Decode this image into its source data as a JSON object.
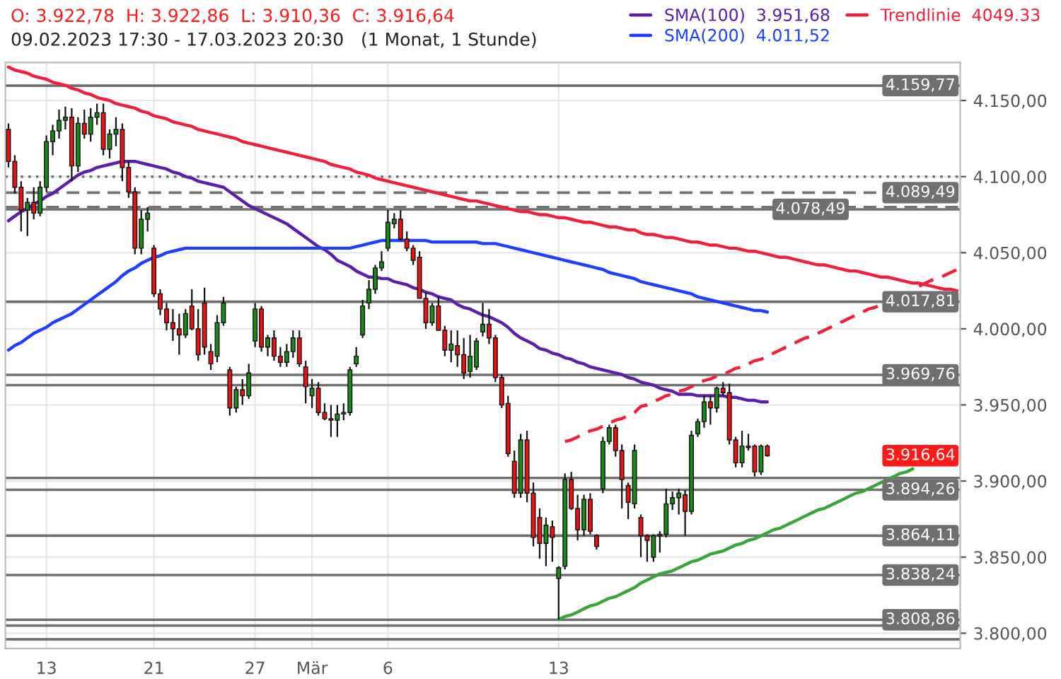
{
  "chart_data": {
    "type": "candlestick",
    "title": "O: 3.922,78  H: 3.922,86  L: 3.910,36  C: 3.916,64",
    "subtitle": "09.02.2023 17:30 - 17.03.2023 20:30   (1 Monat, 1 Stunde)",
    "categories": [
      null,
      null,
      null,
      null,
      null,
      null,
      "13",
      null,
      null,
      null,
      null,
      null,
      null,
      null,
      null,
      null,
      null,
      null,
      null,
      null,
      null,
      null,
      null,
      "21",
      null,
      null,
      null,
      null,
      null,
      null,
      null,
      null,
      null,
      null,
      null,
      null,
      null,
      null,
      null,
      "27",
      null,
      null,
      null,
      null,
      null,
      null,
      null,
      null,
      "Mär",
      null,
      null,
      null,
      null,
      null,
      null,
      null,
      null,
      null,
      null,
      null,
      "6",
      null,
      null,
      null,
      null,
      null,
      null,
      null,
      null,
      null,
      null,
      null,
      null,
      null,
      null,
      null,
      null,
      null,
      null,
      null,
      null,
      null,
      null,
      null,
      null,
      null,
      null,
      "13",
      null,
      null,
      null,
      null,
      null,
      null,
      null,
      null,
      null,
      null,
      null,
      null,
      null,
      null,
      null,
      null,
      null,
      null,
      null,
      null,
      null,
      null,
      null,
      null,
      null,
      null,
      null,
      null,
      null,
      null,
      null,
      null,
      null,
      null,
      null,
      null,
      null,
      null,
      null,
      null,
      null,
      null,
      null,
      null,
      null,
      null,
      null,
      null,
      null,
      null,
      null,
      null,
      null,
      null,
      null,
      null,
      null,
      null,
      null,
      null,
      null,
      null,
      null
    ],
    "ohlc": [
      [
        4131,
        4135,
        4106,
        4110
      ],
      [
        4110,
        4114,
        4089,
        4093
      ],
      [
        4093,
        4097,
        4064,
        4078
      ],
      [
        4078,
        4086,
        4061,
        4083
      ],
      [
        4083,
        4093,
        4072,
        4076
      ],
      [
        4076,
        4097,
        4074,
        4093
      ],
      [
        4093,
        4127,
        4090,
        4123
      ],
      [
        4123,
        4134,
        4114,
        4130
      ],
      [
        4130,
        4144,
        4125,
        4137
      ],
      [
        4137,
        4146,
        4131,
        4139
      ],
      [
        4139,
        4145,
        4097,
        4107
      ],
      [
        4107,
        4139,
        4103,
        4135
      ],
      [
        4135,
        4144,
        4125,
        4128
      ],
      [
        4128,
        4145,
        4123,
        4139
      ],
      [
        4139,
        4148,
        4134,
        4142
      ],
      [
        4142,
        4148,
        4114,
        4118
      ],
      [
        4118,
        4131,
        4112,
        4128
      ],
      [
        4128,
        4139,
        4120,
        4131
      ],
      [
        4131,
        4135,
        4097,
        4106
      ],
      [
        4106,
        4110,
        4086,
        4090
      ],
      [
        4090,
        4093,
        4049,
        4053
      ],
      [
        4053,
        4078,
        4049,
        4072
      ],
      [
        4072,
        4080,
        4064,
        4076
      ],
      [
        4053,
        4055,
        4021,
        4023
      ],
      [
        4023,
        4026,
        4009,
        4013
      ],
      [
        4013,
        4017,
        3999,
        4004
      ],
      [
        4004,
        4013,
        3992,
        4000
      ],
      [
        4000,
        4010,
        3983,
        3996
      ],
      [
        3996,
        4013,
        3994,
        4010
      ],
      [
        4015,
        4026,
        3999,
        4000
      ],
      [
        4000,
        4013,
        3979,
        3983
      ],
      [
        4017,
        4027,
        3983,
        3988
      ],
      [
        3985,
        3990,
        3973,
        3977
      ],
      [
        3982,
        4009,
        3978,
        4004
      ],
      [
        4004,
        4021,
        4002,
        4017
      ],
      [
        3973,
        3975,
        3943,
        3948
      ],
      [
        3948,
        3962,
        3945,
        3960
      ],
      [
        3960,
        3967,
        3950,
        3956
      ],
      [
        3956,
        3977,
        3954,
        3971
      ],
      [
        3992,
        4017,
        3988,
        4013
      ],
      [
        4013,
        4015,
        3985,
        3988
      ],
      [
        3988,
        3996,
        3982,
        3994
      ],
      [
        3994,
        3999,
        3979,
        3982
      ],
      [
        3982,
        3988,
        3975,
        3978
      ],
      [
        3978,
        3990,
        3975,
        3985
      ],
      [
        3985,
        3999,
        3981,
        3994
      ],
      [
        3994,
        3999,
        3975,
        3977
      ],
      [
        3975,
        3979,
        3951,
        3962
      ],
      [
        3956,
        3967,
        3948,
        3961
      ],
      [
        3961,
        3965,
        3943,
        3945
      ],
      [
        3945,
        3951,
        3940,
        3941
      ],
      [
        3941,
        3950,
        3929,
        3940
      ],
      [
        3940,
        3950,
        3929,
        3944
      ],
      [
        3944,
        3951,
        3940,
        3945
      ],
      [
        3945,
        3975,
        3943,
        3973
      ],
      [
        3977,
        3988,
        3975,
        3982
      ],
      [
        3996,
        4019,
        3994,
        4015
      ],
      [
        4017,
        4032,
        4013,
        4026
      ],
      [
        4026,
        4042,
        4023,
        4040
      ],
      [
        4040,
        4051,
        4038,
        4044
      ],
      [
        4053,
        4078,
        4051,
        4070
      ],
      [
        4069,
        4076,
        4066,
        4072
      ],
      [
        4072,
        4078,
        4058,
        4059
      ],
      [
        4059,
        4064,
        4051,
        4053
      ],
      [
        4053,
        4055,
        4042,
        4045
      ],
      [
        4047,
        4051,
        4020,
        4020
      ],
      [
        4020,
        4024,
        4000,
        4004
      ],
      [
        4004,
        4017,
        4002,
        4015
      ],
      [
        4015,
        4021,
        3999,
        3999
      ],
      [
        3999,
        4002,
        3982,
        3986
      ],
      [
        3986,
        3999,
        3978,
        3990
      ],
      [
        3989,
        3999,
        3975,
        3983
      ],
      [
        3983,
        3994,
        3967,
        3971
      ],
      [
        3972,
        3996,
        3968,
        3982
      ],
      [
        3975,
        3994,
        3973,
        3992
      ],
      [
        3998,
        4017,
        3995,
        4003
      ],
      [
        4003,
        4013,
        3990,
        3994
      ],
      [
        3994,
        3996,
        3965,
        3968
      ],
      [
        3968,
        3970,
        3948,
        3950
      ],
      [
        3951,
        3956,
        3916,
        3918
      ],
      [
        3913,
        3920,
        3889,
        3892
      ],
      [
        3892,
        3931,
        3889,
        3927
      ],
      [
        3927,
        3933,
        3886,
        3892
      ],
      [
        3892,
        3899,
        3857,
        3863
      ],
      [
        3876,
        3882,
        3849,
        3859
      ],
      [
        3859,
        3876,
        3844,
        3871
      ],
      [
        3870,
        3874,
        3847,
        3863
      ],
      [
        3836,
        3844,
        3809,
        3843
      ],
      [
        3844,
        3905,
        3842,
        3901
      ],
      [
        3901,
        3906,
        3881,
        3882
      ],
      [
        3882,
        3891,
        3861,
        3868
      ],
      [
        3868,
        3891,
        3864,
        3888
      ],
      [
        3888,
        3892,
        3865,
        3867
      ],
      [
        3864,
        3865,
        3855,
        3857
      ],
      [
        3895,
        3929,
        3892,
        3926
      ],
      [
        3926,
        3937,
        3924,
        3935
      ],
      [
        3935,
        3937,
        3916,
        3920
      ],
      [
        3920,
        3924,
        3882,
        3901
      ],
      [
        3897,
        3899,
        3875,
        3886
      ],
      [
        3885,
        3924,
        3882,
        3920
      ],
      [
        3876,
        3878,
        3850,
        3864
      ],
      [
        3864,
        3865,
        3847,
        3861
      ],
      [
        3850,
        3865,
        3847,
        3864
      ],
      [
        3864,
        3867,
        3853,
        3865
      ],
      [
        3865,
        3895,
        3863,
        3885
      ],
      [
        3885,
        3893,
        3881,
        3889
      ],
      [
        3889,
        3895,
        3878,
        3892
      ],
      [
        3891,
        3894,
        3864,
        3880
      ],
      [
        3880,
        3933,
        3878,
        3930
      ],
      [
        3931,
        3941,
        3929,
        3939
      ],
      [
        3939,
        3956,
        3935,
        3952
      ],
      [
        3952,
        3956,
        3937,
        3948
      ],
      [
        3948,
        3962,
        3945,
        3961
      ],
      [
        3961,
        3965,
        3956,
        3958
      ],
      [
        3958,
        3964,
        3924,
        3927
      ],
      [
        3927,
        3929,
        3909,
        3912
      ],
      [
        3912,
        3933,
        3909,
        3923
      ],
      [
        3923,
        3931,
        3920,
        3922
      ],
      [
        3923,
        3924,
        3903,
        3906
      ],
      [
        3906,
        3924,
        3904,
        3923
      ],
      [
        3923,
        3924,
        3916,
        3916.64
      ],
      null,
      null,
      null,
      null,
      null,
      null,
      null,
      null,
      null,
      null,
      null,
      null,
      null,
      null,
      null,
      null,
      null,
      null,
      null,
      null,
      null,
      null,
      null,
      null,
      null,
      null,
      null,
      null,
      null,
      null
    ],
    "series": [
      {
        "type": "line",
        "name": "SMA(100)  3.951,68",
        "color": "#5b1fa8",
        "values": [
          4071,
          4074,
          4077,
          4079,
          4082,
          4084,
          4087,
          4089,
          4092,
          4095,
          4098,
          4101,
          4103,
          4104,
          4106,
          4107,
          4108,
          4109,
          4110,
          4110,
          4110,
          4109,
          4108,
          4107,
          4106,
          4105,
          4103,
          4102,
          4100,
          4099,
          4097,
          4096,
          4095,
          4094,
          4093,
          4090,
          4087,
          4084,
          4081,
          4079,
          4077,
          4075,
          4073,
          4071,
          4069,
          4066,
          4063,
          4060,
          4057,
          4054,
          4052,
          4049,
          4045,
          4043,
          4041,
          4038,
          4036,
          4034,
          4034,
          4033,
          4033,
          4031,
          4030,
          4029,
          4027,
          4026,
          4024,
          4023,
          4021,
          4020,
          4019,
          4016,
          4014,
          4013,
          4011,
          4009,
          4008,
          4006,
          4004,
          4001,
          3997,
          3994,
          3992,
          3990,
          3987,
          3986,
          3984,
          3983,
          3981,
          3980,
          3978,
          3977,
          3975,
          3974,
          3973,
          3972,
          3971,
          3970,
          3968,
          3967,
          3965,
          3964,
          3963,
          3961,
          3960,
          3959,
          3957,
          3957,
          3957,
          3956,
          3956,
          3956,
          3956,
          3956,
          3955,
          3955,
          3954,
          3953,
          3953,
          3952,
          3952,
          null,
          null,
          null,
          null,
          null,
          null,
          null,
          null,
          null,
          null,
          null,
          null,
          null,
          null,
          null,
          null,
          null,
          null,
          null,
          null,
          null,
          null,
          null,
          null,
          null,
          null,
          null,
          null,
          null,
          null
        ]
      },
      {
        "type": "line",
        "name": "SMA(200)  4.011,52",
        "color": "#1f3fff",
        "values": [
          3986,
          3989,
          3991,
          3994,
          3997,
          3999,
          4001,
          4004,
          4006,
          4008,
          4010,
          4013,
          4016,
          4019,
          4022,
          4025,
          4028,
          4031,
          4035,
          4038,
          4040,
          4043,
          4045,
          4047,
          4048,
          4050,
          4051,
          4052,
          4053,
          4053,
          4053,
          4053,
          4053,
          4053,
          4053,
          4053,
          4053,
          4053,
          4053,
          4053,
          4053,
          4053,
          4053,
          4053,
          4053,
          4053,
          4053,
          4053,
          4053,
          4053,
          4053,
          4053,
          4053,
          4053,
          4053,
          4054,
          4055,
          4056,
          4057,
          4058,
          4058,
          4058,
          4058,
          4058,
          4058,
          4058,
          4058,
          4057,
          4057,
          4057,
          4057,
          4057,
          4057,
          4057,
          4057,
          4056,
          4056,
          4056,
          4055,
          4054,
          4053,
          4052,
          4051,
          4050,
          4049,
          4048,
          4047,
          4046,
          4045,
          4044,
          4043,
          4042,
          4041,
          4040,
          4039,
          4037,
          4036,
          4035,
          4034,
          4033,
          4031,
          4030,
          4029,
          4028,
          4027,
          4026,
          4025,
          4024,
          4023,
          4021,
          4020,
          4019,
          4018,
          4017,
          4016,
          4015,
          4014,
          4013,
          4012,
          4012,
          4011,
          null,
          null,
          null,
          null,
          null,
          null,
          null,
          null,
          null,
          null,
          null,
          null,
          null,
          null,
          null,
          null,
          null,
          null,
          null,
          null,
          null,
          null,
          null,
          null,
          null,
          null,
          null,
          null,
          null,
          null
        ]
      },
      {
        "type": "line",
        "name": "Trendlinie  4049.33",
        "color": "#f0203c",
        "values": [
          4172,
          4170,
          4169,
          4168,
          4166,
          4165,
          4164,
          4162,
          4161,
          4160,
          4158,
          4157,
          4155,
          4154,
          4152,
          4151,
          4150,
          4148,
          4147,
          4146,
          4145,
          4143,
          4142,
          4140,
          4139,
          4138,
          4136,
          4135,
          4134,
          4133,
          4131,
          4130,
          4129,
          4128,
          4127,
          4126,
          4125,
          4123,
          4122,
          4121,
          4120,
          4119,
          4118,
          4117,
          4116,
          4115,
          4114,
          4113,
          4112,
          4111,
          4110,
          4108,
          4107,
          4106,
          4105,
          4103,
          4102,
          4101,
          4099,
          4098,
          4097,
          4096,
          4095,
          4094,
          4093,
          4092,
          4091,
          4090,
          4089,
          4088,
          4087,
          4086,
          4085,
          4084,
          4084,
          4083,
          4082,
          4081,
          4080,
          4079,
          4078,
          4077,
          4077,
          4076,
          4075,
          4075,
          4074,
          4073,
          4073,
          4072,
          4071,
          4070,
          4070,
          4069,
          4068,
          4067,
          4067,
          4066,
          4065,
          4065,
          4063,
          4062,
          4062,
          4061,
          4060,
          4060,
          4059,
          4058,
          4057,
          4057,
          4056,
          4055,
          4055,
          4054,
          4053,
          4053,
          4052,
          4051,
          4051,
          4050,
          4049,
          4048,
          4047,
          4047,
          4046,
          4045,
          4044,
          4043,
          4042,
          4042,
          4041,
          4040,
          4039,
          4038,
          4038,
          4037,
          4036,
          4035,
          4034,
          4034,
          4033,
          4032,
          4031,
          4030,
          4030,
          4029,
          4028,
          4027,
          4026,
          4026,
          4025
        ]
      },
      {
        "type": "line",
        "color": "#f0203c",
        "line_style": "dashed",
        "values": [
          null,
          null,
          null,
          null,
          null,
          null,
          null,
          null,
          null,
          null,
          null,
          null,
          null,
          null,
          null,
          null,
          null,
          null,
          null,
          null,
          null,
          null,
          null,
          null,
          null,
          null,
          null,
          null,
          null,
          null,
          null,
          null,
          null,
          null,
          null,
          null,
          null,
          null,
          null,
          null,
          null,
          null,
          null,
          null,
          null,
          null,
          null,
          null,
          null,
          null,
          null,
          null,
          null,
          null,
          null,
          null,
          null,
          null,
          null,
          null,
          null,
          null,
          null,
          null,
          null,
          null,
          null,
          null,
          null,
          null,
          null,
          null,
          null,
          null,
          null,
          null,
          null,
          null,
          null,
          null,
          null,
          null,
          null,
          null,
          null,
          null,
          null,
          null,
          3926,
          3927,
          3929,
          3931,
          3933,
          3934,
          3936,
          3938,
          3940,
          3941,
          3943,
          3945,
          3949,
          3950,
          3952,
          3954,
          3956,
          3957,
          3959,
          3960,
          3962,
          3964,
          3966,
          3967,
          3969,
          3970,
          3972,
          3974,
          3975,
          3977,
          3979,
          3980,
          3982,
          3984,
          3986,
          3988,
          3990,
          3992,
          3994,
          3995,
          3997,
          3999,
          4001,
          4003,
          4005,
          4007,
          4009,
          4011,
          4013,
          4014,
          4016,
          null,
          null,
          null,
          null,
          null,
          4028,
          4030,
          4032,
          4033,
          4035,
          4037,
          4039
        ]
      },
      {
        "type": "line",
        "color": "#3aa63a",
        "values": [
          null,
          null,
          null,
          null,
          null,
          null,
          null,
          null,
          null,
          null,
          null,
          null,
          null,
          null,
          null,
          null,
          null,
          null,
          null,
          null,
          null,
          null,
          null,
          null,
          null,
          null,
          null,
          null,
          null,
          null,
          null,
          null,
          null,
          null,
          null,
          null,
          null,
          null,
          null,
          null,
          null,
          null,
          null,
          null,
          null,
          null,
          null,
          null,
          null,
          null,
          null,
          null,
          null,
          null,
          null,
          null,
          null,
          null,
          null,
          null,
          null,
          null,
          null,
          null,
          null,
          null,
          null,
          null,
          null,
          null,
          null,
          null,
          null,
          null,
          null,
          null,
          null,
          null,
          null,
          null,
          null,
          null,
          null,
          null,
          null,
          null,
          null,
          3809,
          3811,
          3812,
          3814,
          3816,
          3818,
          3819,
          3821,
          3823,
          3824,
          3826,
          3828,
          3830,
          3833,
          3835,
          3837,
          3839,
          3840,
          3841,
          3843,
          3845,
          3847,
          3848,
          3850,
          3852,
          3853,
          3854,
          3856,
          3858,
          3859,
          3861,
          3862,
          3864,
          3866,
          3868,
          3869,
          3871,
          3873,
          3875,
          3877,
          3879,
          3881,
          3882,
          3884,
          3886,
          3888,
          3890,
          3892,
          3893,
          3895,
          3897,
          3899,
          3901,
          3903,
          3905,
          3906,
          3908,
          null,
          null,
          null,
          null,
          null,
          null,
          null
        ]
      }
    ],
    "ylim": [
      3790,
      4175
    ],
    "yticks": [
      {
        "value": 3800,
        "label": "3.800,00"
      },
      {
        "value": 3850,
        "label": "3.850,00"
      },
      {
        "value": 3900,
        "label": "3.900,00"
      },
      {
        "value": 3950,
        "label": "3.950,00"
      },
      {
        "value": 4000,
        "label": "4.000,00"
      },
      {
        "value": 4050,
        "label": "4.050,00"
      },
      {
        "value": 4100,
        "label": "4.100,00"
      },
      {
        "value": 4150,
        "label": "4.150,00"
      }
    ],
    "ref_lines": [
      {
        "axis": "y",
        "value": 4159.77,
        "label": "4.159,77",
        "color": "#707070"
      },
      {
        "axis": "y",
        "value": 4100,
        "label": null,
        "color": "#707070",
        "line_style": "dotted"
      },
      {
        "axis": "y",
        "value": 4089.49,
        "label": "4.089,49",
        "color": "#707070",
        "line_style": "dashed"
      },
      {
        "axis": "y",
        "value": 4080,
        "label": null,
        "color": "#707070",
        "line_style": "dashed"
      },
      {
        "axis": "y",
        "value": 4078.49,
        "label": "4.078,49",
        "color": "#707070"
      },
      {
        "axis": "y",
        "value": 4017.81,
        "label": "4.017,81",
        "color": "#707070"
      },
      {
        "axis": "y",
        "value": 3969.76,
        "label": "3.969,76",
        "color": "#707070"
      },
      {
        "axis": "y",
        "value": 3963,
        "label": null,
        "color": "#707070"
      },
      {
        "axis": "y",
        "value": 3902,
        "label": null,
        "color": "#707070"
      },
      {
        "axis": "y",
        "value": 3894.26,
        "label": "3.894,26",
        "color": "#707070"
      },
      {
        "axis": "y",
        "value": 3864.11,
        "label": "3.864,11",
        "color": "#707070"
      },
      {
        "axis": "y",
        "value": 3838.24,
        "label": "3.838,24",
        "color": "#707070"
      },
      {
        "axis": "y",
        "value": 3808.86,
        "label": "3.808,86",
        "color": "#707070"
      },
      {
        "axis": "y",
        "value": 3805,
        "label": null,
        "color": "#707070"
      },
      {
        "axis": "y",
        "value": 3796,
        "label": null,
        "color": "#707070"
      }
    ],
    "annotations": [
      "3.916,64"
    ],
    "grid": true,
    "legend": "top"
  }
}
